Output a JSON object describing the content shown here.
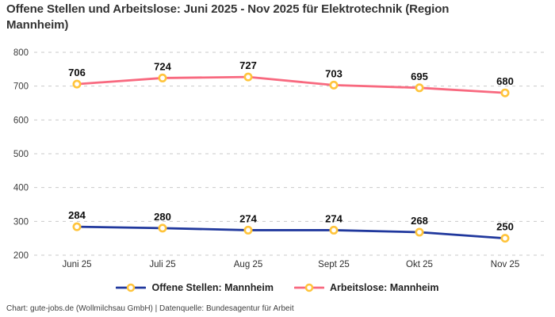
{
  "header": {
    "title": "Offene Stellen und Arbeitslose: Juni 2025 - Nov 2025 für Elektrotechnik (Region Mannheim)"
  },
  "chart_data": {
    "type": "line",
    "title": "Offene Stellen und Arbeitslose: Juni 2025 - Nov 2025 für Elektrotechnik (Region Mannheim)",
    "categories": [
      "Juni 25",
      "Juli 25",
      "Aug 25",
      "Sept 25",
      "Okt 25",
      "Nov 25"
    ],
    "series": [
      {
        "name": "Offene Stellen: Mannheim",
        "color": "#20389d",
        "values": [
          284,
          280,
          274,
          274,
          268,
          250
        ]
      },
      {
        "name": "Arbeitslose: Mannheim",
        "color": "#f8697f",
        "values": [
          706,
          724,
          727,
          703,
          695,
          680
        ]
      }
    ],
    "ylim": [
      200,
      800
    ],
    "yticks": [
      200,
      300,
      400,
      500,
      600,
      700,
      800
    ],
    "grid": "horizontal-dashed",
    "gridline_color": "#c9c9c9",
    "marker": {
      "ring_color": "#ffc43b",
      "fill_color": "#ffffff"
    },
    "legend_position": "bottom",
    "value_labels": true
  },
  "footer": {
    "credit": "Chart: gute-jobs.de (Wollmilchsau GmbH) | Datenquelle: Bundesagentur für Arbeit"
  }
}
